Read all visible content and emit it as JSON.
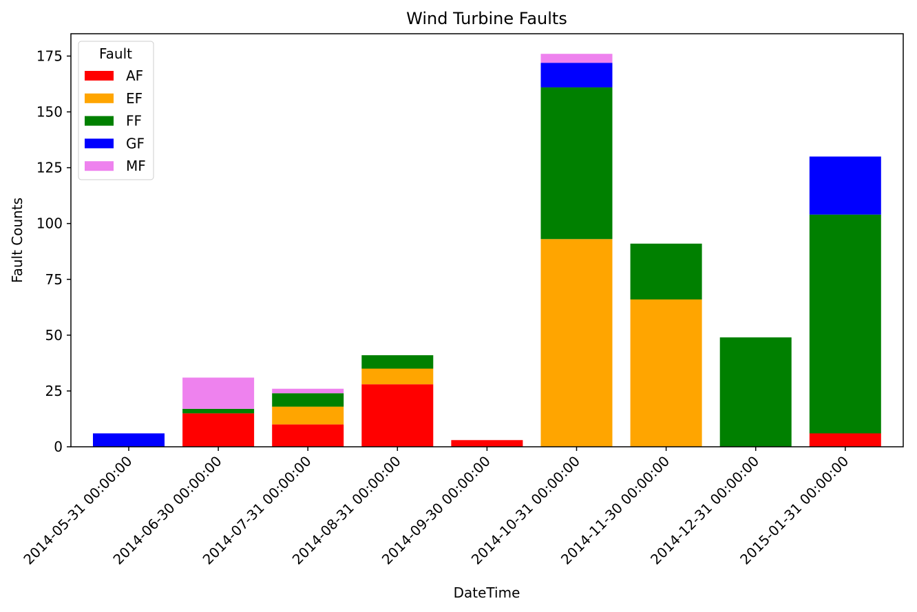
{
  "chart_data": {
    "type": "bar",
    "stacked": true,
    "title": "Wind Turbine Faults",
    "xlabel": "DateTime",
    "ylabel": "Fault Counts",
    "ylim": [
      0,
      185
    ],
    "yticks": [
      0,
      25,
      50,
      75,
      100,
      125,
      150,
      175
    ],
    "categories": [
      "2014-05-31 00:00:00",
      "2014-06-30 00:00:00",
      "2014-07-31 00:00:00",
      "2014-08-31 00:00:00",
      "2014-09-30 00:00:00",
      "2014-10-31 00:00:00",
      "2014-11-30 00:00:00",
      "2014-12-31 00:00:00",
      "2015-01-31 00:00:00"
    ],
    "series": [
      {
        "name": "AF",
        "color": "#ff0000",
        "values": [
          0,
          15,
          10,
          28,
          3,
          0,
          0,
          0,
          6
        ]
      },
      {
        "name": "EF",
        "color": "#ffa500",
        "values": [
          0,
          0,
          8,
          7,
          0,
          93,
          66,
          0,
          0
        ]
      },
      {
        "name": "FF",
        "color": "#008000",
        "values": [
          0,
          2,
          6,
          6,
          0,
          68,
          25,
          49,
          98
        ]
      },
      {
        "name": "GF",
        "color": "#0000ff",
        "values": [
          6,
          0,
          0,
          0,
          0,
          11,
          0,
          0,
          26
        ]
      },
      {
        "name": "MF",
        "color": "#ee82ee",
        "values": [
          0,
          14,
          2,
          0,
          0,
          4,
          0,
          0,
          0
        ]
      }
    ],
    "legend": {
      "title": "Fault",
      "position": "top-left"
    },
    "grid": false,
    "xtick_rotation": 45
  }
}
